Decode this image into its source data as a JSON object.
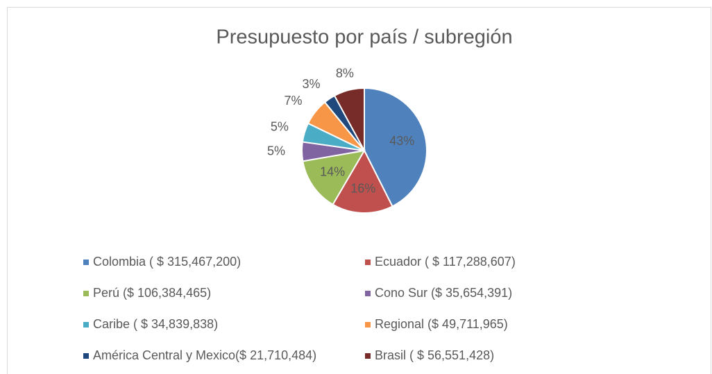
{
  "chart_data": {
    "type": "pie",
    "title": "Presupuesto por país / subregión",
    "series": [
      {
        "name": "Colombia ( $ 315,467,200)",
        "color": "#4f81bd"
      },
      {
        "name": "Ecuador ( $ 117,288,607)",
        "color": "#c0504d"
      },
      {
        "name": "Perú ($ 106,384,465)",
        "color": "#9bbb59"
      },
      {
        "name": "Cono Sur ($ 35,654,391)",
        "color": "#8064a2"
      },
      {
        "name": "Caribe ( $ 34,839,838)",
        "color": "#4bacc6"
      },
      {
        "name": "Regional ($ 49,711,965)",
        "color": "#f79646"
      },
      {
        "name": "América Central y Mexico($ 21,710,484)",
        "color": "#1f497d"
      },
      {
        "name": "Brasil ( $ 56,551,428)",
        "color": "#772c2a"
      }
    ],
    "values": [
      43,
      16,
      14,
      5,
      5,
      7,
      3,
      8
    ],
    "value_labels": [
      "43%",
      "16%",
      "14%",
      "5%",
      "5%",
      "7%",
      "3%",
      "8%"
    ],
    "legend": "bottom"
  }
}
